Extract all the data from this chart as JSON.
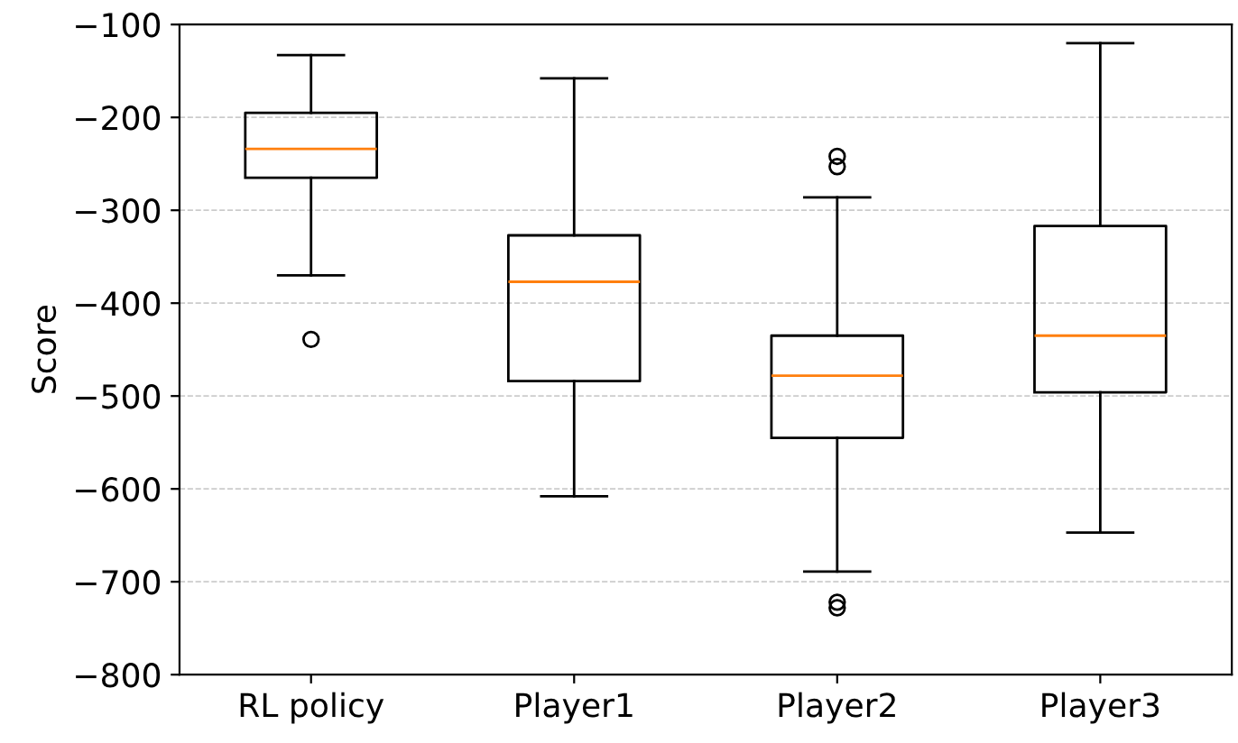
{
  "chart_data": {
    "type": "box",
    "ylabel": "Score",
    "categories": [
      "RL policy",
      "Player1",
      "Player2",
      "Player3"
    ],
    "boxes": [
      {
        "low": -370,
        "q1": -265,
        "median": -234,
        "q3": -195,
        "high": -133,
        "outliers": [
          -439
        ]
      },
      {
        "low": -608,
        "q1": -484,
        "median": -377,
        "q3": -327,
        "high": -158
      },
      {
        "low": -689,
        "q1": -545,
        "median": -478,
        "q3": -435,
        "high": -286,
        "outliers": [
          -242,
          -253,
          -722,
          -728
        ]
      },
      {
        "low": -647,
        "q1": -496,
        "median": -435,
        "q3": -317,
        "high": -120
      }
    ],
    "ylim": [
      -800,
      -100
    ],
    "yticks": [
      -800,
      -700,
      -600,
      -500,
      -400,
      -300,
      -200,
      -100
    ],
    "grid": "y",
    "color": "#000000"
  }
}
